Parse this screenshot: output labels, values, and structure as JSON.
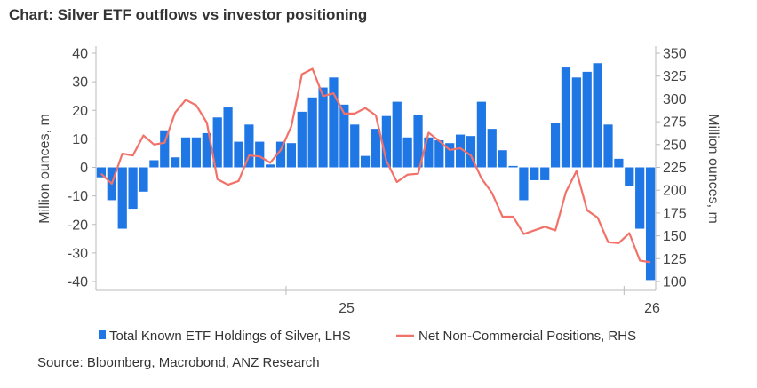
{
  "title": "Chart: Silver ETF outflows vs investor positioning",
  "source": "Source:  Bloomberg, Macrobond, ANZ Research",
  "chart_data": {
    "type": "bar",
    "left_axis": {
      "label": "Million ounces, m",
      "range": [
        -40,
        40
      ],
      "ticks": [
        "40",
        "30",
        "20",
        "10",
        "0",
        "-10",
        "-20",
        "-30",
        "-40"
      ]
    },
    "right_axis": {
      "label": "Million ounces, m",
      "range": [
        100,
        350
      ],
      "ticks": [
        "350",
        "325",
        "300",
        "275",
        "250",
        "225",
        "200",
        "175",
        "150",
        "125",
        "100"
      ]
    },
    "x_ticks": [
      "25",
      "26"
    ],
    "grid": false,
    "legend_position": "bottom",
    "series": [
      {
        "name": "Total Known ETF Holdings of Silver, LHS",
        "type": "bar",
        "color": "#1f77e6",
        "axis": "left",
        "values": [
          -3.5,
          -11.5,
          -21.5,
          -14.5,
          -8.5,
          2.5,
          13,
          3.5,
          10.5,
          10.5,
          12,
          17.5,
          21,
          9,
          15,
          9,
          1,
          9,
          8.5,
          19.5,
          24.5,
          28,
          31.5,
          22,
          15,
          4,
          13.5,
          18,
          23,
          10.5,
          18.5,
          10.5,
          9.5,
          8.5,
          11.5,
          11,
          23,
          13.5,
          6,
          0.5,
          -11.5,
          -4.5,
          -4.5,
          15.5,
          35,
          31.5,
          33.5,
          36.5,
          15,
          3,
          -6.5,
          -21.5,
          -39.5
        ]
      },
      {
        "name": "Net Non-Commercial Positions, RHS",
        "type": "line",
        "color": "#f27169",
        "axis": "right",
        "values": [
          218,
          207,
          240,
          238,
          260,
          250,
          252,
          285,
          299,
          293,
          274,
          212,
          206,
          210,
          238,
          237,
          230,
          244,
          270,
          327,
          333,
          303,
          306,
          284,
          284,
          290,
          282,
          232,
          209,
          217,
          218,
          263,
          254,
          244,
          246,
          238,
          213,
          197,
          171,
          171,
          152,
          156,
          160,
          156,
          198,
          221,
          178,
          170,
          143,
          142,
          153,
          123,
          121
        ]
      }
    ]
  }
}
